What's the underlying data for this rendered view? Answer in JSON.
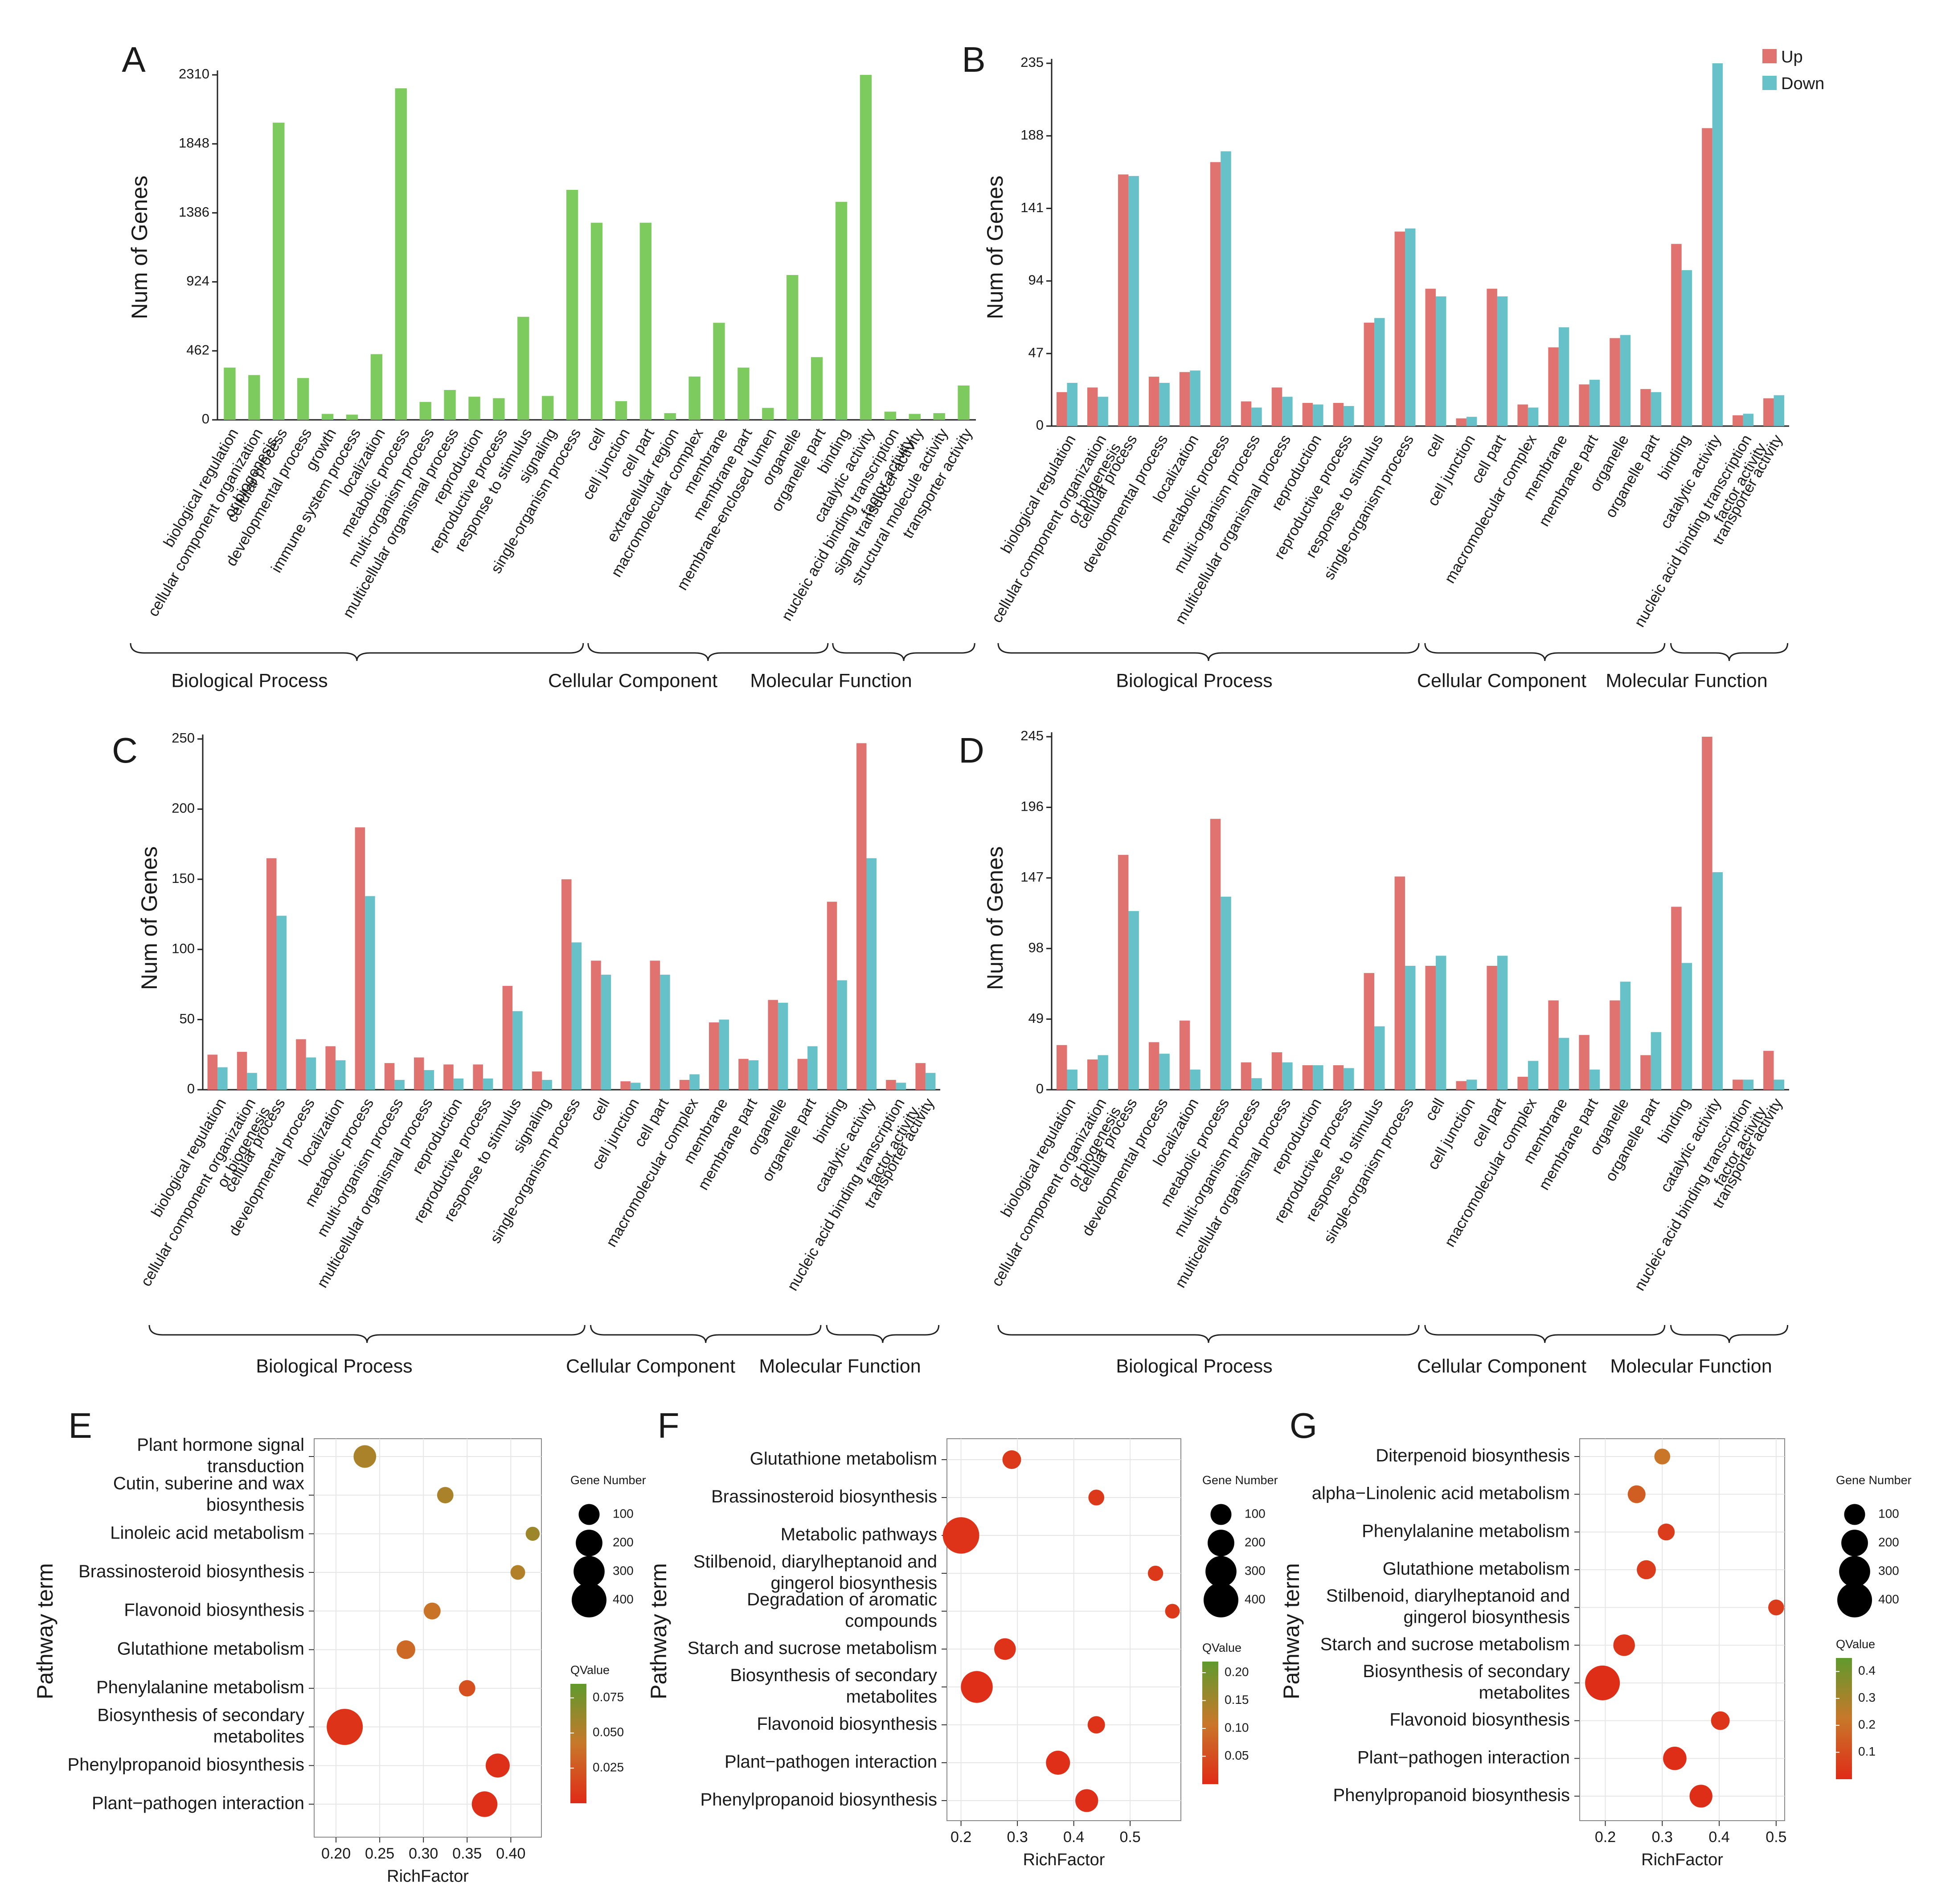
{
  "colors": {
    "single": "#7dcb5e",
    "up": "#e0736f",
    "down": "#67c1c8",
    "panel_bg": "#ffffff",
    "grid": "#e6e6e6",
    "qlow": "#e02b17",
    "qhigh": "#5f9a2d"
  },
  "chart_data": [
    {
      "panel": "A",
      "type": "bar",
      "ylabel": "Num of Genes",
      "yticks": [
        0,
        462,
        924,
        1386,
        1848,
        2310
      ],
      "ylim": [
        0,
        2310
      ],
      "categories": [
        "biological regulation",
        "cellular component organization\nor biogenesis",
        "cellular process",
        "developmental process",
        "growth",
        "immune system process",
        "localization",
        "metabolic process",
        "multi-organism process",
        "multicellular organismal process",
        "reproduction",
        "reproductive process",
        "response to stimulus",
        "signaling",
        "single-organism process",
        "cell",
        "cell junction",
        "cell part",
        "extracellular region",
        "macromolecular complex",
        "membrane",
        "membrane part",
        "membrane-enclosed lumen",
        "organelle",
        "organelle part",
        "binding",
        "catalytic activity",
        "nucleic acid binding transcription\nfactor activity",
        "signal transducer activity",
        "structural molecule activity",
        "transporter activity"
      ],
      "series": [
        {
          "values": [
            350,
            300,
            1990,
            280,
            40,
            35,
            440,
            2220,
            120,
            200,
            155,
            145,
            690,
            160,
            1540,
            1320,
            125,
            1320,
            45,
            290,
            650,
            350,
            80,
            970,
            420,
            1460,
            2310,
            55,
            40,
            45,
            230
          ]
        }
      ],
      "groups": [
        {
          "label": "Biological Process",
          "from": 0,
          "to": 14
        },
        {
          "label": "Cellular Component",
          "from": 15,
          "to": 24
        },
        {
          "label": "Molecular Function",
          "from": 25,
          "to": 30
        }
      ]
    },
    {
      "panel": "B",
      "type": "bar",
      "ylabel": "Num of Genes",
      "yticks": [
        0,
        47,
        94,
        141,
        188,
        235
      ],
      "ylim": [
        0,
        235
      ],
      "legend": [
        "Up",
        "Down"
      ],
      "categories": [
        "biological regulation",
        "cellular component organization\nor biogenesis",
        "cellular process",
        "developmental process",
        "localization",
        "metabolic process",
        "multi-organism process",
        "multicellular organismal process",
        "reproduction",
        "reproductive process",
        "response to stimulus",
        "single-organism process",
        "cell",
        "cell junction",
        "cell part",
        "macromolecular complex",
        "membrane",
        "membrane part",
        "organelle",
        "organelle part",
        "binding",
        "catalytic activity",
        "nucleic acid binding transcription\nfactor activity",
        "transporter activity"
      ],
      "series": [
        {
          "name": "Up",
          "values": [
            22,
            25,
            163,
            32,
            35,
            171,
            16,
            25,
            15,
            15,
            67,
            126,
            89,
            5,
            89,
            14,
            51,
            27,
            57,
            24,
            118,
            193,
            7,
            18
          ]
        },
        {
          "name": "Down",
          "values": [
            28,
            19,
            162,
            28,
            36,
            178,
            12,
            19,
            14,
            13,
            70,
            128,
            84,
            6,
            84,
            12,
            64,
            30,
            59,
            22,
            101,
            235,
            8,
            20
          ]
        }
      ],
      "groups": [
        {
          "label": "Biological Process",
          "from": 0,
          "to": 11
        },
        {
          "label": "Cellular Component",
          "from": 12,
          "to": 19
        },
        {
          "label": "Molecular Function",
          "from": 20,
          "to": 23
        }
      ]
    },
    {
      "panel": "C",
      "type": "bar",
      "ylabel": "Num of Genes",
      "yticks": [
        0,
        50,
        100,
        150,
        200,
        250
      ],
      "ylim": [
        0,
        250
      ],
      "categories": [
        "biological regulation",
        "cellular component organization\nor biogenesis",
        "cellular process",
        "developmental process",
        "localization",
        "metabolic process",
        "multi-organism process",
        "multicellular organismal process",
        "reproduction",
        "reproductive process",
        "response to stimulus",
        "signaling",
        "single-organism process",
        "cell",
        "cell junction",
        "cell part",
        "macromolecular complex",
        "membrane",
        "membrane part",
        "organelle",
        "organelle part",
        "binding",
        "catalytic activity",
        "nucleic acid binding transcription\nfactor activity",
        "transporter activity"
      ],
      "series": [
        {
          "name": "Up",
          "values": [
            25,
            27,
            165,
            36,
            31,
            187,
            19,
            23,
            18,
            18,
            74,
            13,
            150,
            92,
            6,
            92,
            7,
            48,
            22,
            64,
            22,
            134,
            247,
            7,
            19
          ]
        },
        {
          "name": "Down",
          "values": [
            16,
            12,
            124,
            23,
            21,
            138,
            7,
            14,
            8,
            8,
            56,
            7,
            105,
            82,
            5,
            82,
            11,
            50,
            21,
            62,
            31,
            78,
            165,
            5,
            12
          ]
        }
      ],
      "groups": [
        {
          "label": "Biological Process",
          "from": 0,
          "to": 12
        },
        {
          "label": "Cellular Component",
          "from": 13,
          "to": 20
        },
        {
          "label": "Molecular Function",
          "from": 21,
          "to": 24
        }
      ]
    },
    {
      "panel": "D",
      "type": "bar",
      "ylabel": "Num of Genes",
      "yticks": [
        0,
        49,
        98,
        147,
        196,
        245
      ],
      "ylim": [
        0,
        245
      ],
      "categories": [
        "biological regulation",
        "cellular component organization\nor biogenesis",
        "cellular process",
        "developmental process",
        "localization",
        "metabolic process",
        "multi-organism process",
        "multicellular organismal process",
        "reproduction",
        "reproductive process",
        "response to stimulus",
        "single-organism process",
        "cell",
        "cell junction",
        "cell part",
        "macromolecular complex",
        "membrane",
        "membrane part",
        "organelle",
        "organelle part",
        "binding",
        "catalytic activity",
        "nucleic acid binding transcription\nfactor activity",
        "transporter activity"
      ],
      "series": [
        {
          "name": "Up",
          "values": [
            31,
            21,
            163,
            33,
            48,
            188,
            19,
            26,
            17,
            17,
            81,
            148,
            86,
            6,
            86,
            9,
            62,
            38,
            62,
            24,
            127,
            245,
            7,
            27
          ]
        },
        {
          "name": "Down",
          "values": [
            14,
            24,
            124,
            25,
            14,
            134,
            8,
            19,
            17,
            15,
            44,
            86,
            93,
            7,
            93,
            20,
            36,
            14,
            75,
            40,
            88,
            151,
            7,
            7
          ]
        }
      ],
      "groups": [
        {
          "label": "Biological Process",
          "from": 0,
          "to": 11
        },
        {
          "label": "Cellular Component",
          "from": 12,
          "to": 19
        },
        {
          "label": "Molecular Function",
          "from": 20,
          "to": 23
        }
      ]
    },
    {
      "panel": "E",
      "type": "scatter",
      "xlabel": "RichFactor",
      "ylabel": "Pathway term",
      "xlim": [
        0.175,
        0.435
      ],
      "xticks": [
        0.2,
        0.25,
        0.3,
        0.35,
        0.4
      ],
      "xtick_labels": [
        "0.20",
        "0.25",
        "0.30",
        "0.35",
        "0.40"
      ],
      "size_title": "Gene Number",
      "size_ticks": [
        100,
        200,
        300,
        400
      ],
      "color_title": "QValue",
      "color_ticks": [
        0.025,
        0.05,
        0.075
      ],
      "color_tick_labels": [
        "0.025",
        "0.050",
        "0.075"
      ],
      "color_range": [
        0.0,
        0.085
      ],
      "points": [
        {
          "term": "Plant hormone signal\ntransduction",
          "x": 0.233,
          "genes": 125,
          "q": 0.055
        },
        {
          "term": "Cutin, suberine and wax\nbiosynthesis",
          "x": 0.325,
          "genes": 45,
          "q": 0.055
        },
        {
          "term": "Linoleic acid metabolism",
          "x": 0.425,
          "genes": 25,
          "q": 0.06
        },
        {
          "term": "Brassinosteroid biosynthesis",
          "x": 0.408,
          "genes": 30,
          "q": 0.052
        },
        {
          "term": "Flavonoid biosynthesis",
          "x": 0.31,
          "genes": 50,
          "q": 0.04
        },
        {
          "term": "Glutathione metabolism",
          "x": 0.28,
          "genes": 70,
          "q": 0.035
        },
        {
          "term": "Phenylalanine metabolism",
          "x": 0.35,
          "genes": 45,
          "q": 0.02
        },
        {
          "term": "Biosynthesis of secondary\nmetabolites",
          "x": 0.21,
          "genes": 440,
          "q": 0.005
        },
        {
          "term": "Phenylpropanoid biosynthesis",
          "x": 0.385,
          "genes": 150,
          "q": 0.003
        },
        {
          "term": "Plant−pathogen interaction",
          "x": 0.37,
          "genes": 180,
          "q": 0.003
        }
      ]
    },
    {
      "panel": "F",
      "type": "scatter",
      "xlabel": "RichFactor",
      "ylabel": "Pathway term",
      "xlim": [
        0.175,
        0.59
      ],
      "xticks": [
        0.2,
        0.3,
        0.4,
        0.5
      ],
      "xtick_labels": [
        "0.2",
        "0.3",
        "0.4",
        "0.5"
      ],
      "size_title": "Gene Number",
      "size_ticks": [
        100,
        200,
        300,
        400
      ],
      "color_title": "QValue",
      "color_ticks": [
        0.05,
        0.1,
        0.15,
        0.2
      ],
      "color_tick_labels": [
        "0.05",
        "0.10",
        "0.15",
        "0.20"
      ],
      "color_range": [
        0.0,
        0.22
      ],
      "points": [
        {
          "term": "Glutathione metabolism",
          "x": 0.29,
          "genes": 70,
          "q": 0.02
        },
        {
          "term": "Brassinosteroid biosynthesis",
          "x": 0.44,
          "genes": 40,
          "q": 0.02
        },
        {
          "term": "Metabolic pathways",
          "x": 0.2,
          "genes": 450,
          "q": 0.01
        },
        {
          "term": "Stilbenoid, diarylheptanoid and\ngingerol biosynthesis",
          "x": 0.545,
          "genes": 35,
          "q": 0.02
        },
        {
          "term": "Degradation of aromatic\ncompounds",
          "x": 0.575,
          "genes": 30,
          "q": 0.02
        },
        {
          "term": "Starch and sucrose metabolism",
          "x": 0.278,
          "genes": 110,
          "q": 0.01
        },
        {
          "term": "Biosynthesis of secondary\nmetabolites",
          "x": 0.228,
          "genes": 320,
          "q": 0.005
        },
        {
          "term": "Flavonoid biosynthesis",
          "x": 0.44,
          "genes": 55,
          "q": 0.01
        },
        {
          "term": "Plant−pathogen interaction",
          "x": 0.372,
          "genes": 150,
          "q": 0.005
        },
        {
          "term": "Phenylpropanoid biosynthesis",
          "x": 0.423,
          "genes": 130,
          "q": 0.005
        }
      ]
    },
    {
      "panel": "G",
      "type": "scatter",
      "xlabel": "RichFactor",
      "ylabel": "Pathway term",
      "xlim": [
        0.155,
        0.515
      ],
      "xticks": [
        0.2,
        0.3,
        0.4,
        0.5
      ],
      "xtick_labels": [
        "0.2",
        "0.3",
        "0.4",
        "0.5"
      ],
      "size_title": "Gene Number",
      "size_ticks": [
        100,
        200,
        300,
        400
      ],
      "color_title": "QValue",
      "color_ticks": [
        0.1,
        0.2,
        0.3,
        0.4
      ],
      "color_tick_labels": [
        "0.1",
        "0.2",
        "0.3",
        "0.4"
      ],
      "color_range": [
        0.0,
        0.45
      ],
      "points": [
        {
          "term": "Diterpenoid biosynthesis",
          "x": 0.3,
          "genes": 40,
          "q": 0.22
        },
        {
          "term": "alpha−Linolenic acid metabolism",
          "x": 0.255,
          "genes": 60,
          "q": 0.15
        },
        {
          "term": "Phenylalanine metabolism",
          "x": 0.307,
          "genes": 50,
          "q": 0.05
        },
        {
          "term": "Glutathione metabolism",
          "x": 0.272,
          "genes": 75,
          "q": 0.05
        },
        {
          "term": "Stilbenoid, diarylheptanoid and\ngingerol biosynthesis",
          "x": 0.5,
          "genes": 40,
          "q": 0.05
        },
        {
          "term": "Starch and sucrose metabolism",
          "x": 0.233,
          "genes": 110,
          "q": 0.03
        },
        {
          "term": "Biosynthesis of secondary\nmetabolites",
          "x": 0.195,
          "genes": 400,
          "q": 0.01
        },
        {
          "term": "Flavonoid biosynthesis",
          "x": 0.402,
          "genes": 70,
          "q": 0.03
        },
        {
          "term": "Plant−pathogen interaction",
          "x": 0.322,
          "genes": 140,
          "q": 0.01
        },
        {
          "term": "Phenylpropanoid biosynthesis",
          "x": 0.368,
          "genes": 130,
          "q": 0.01
        }
      ]
    }
  ]
}
